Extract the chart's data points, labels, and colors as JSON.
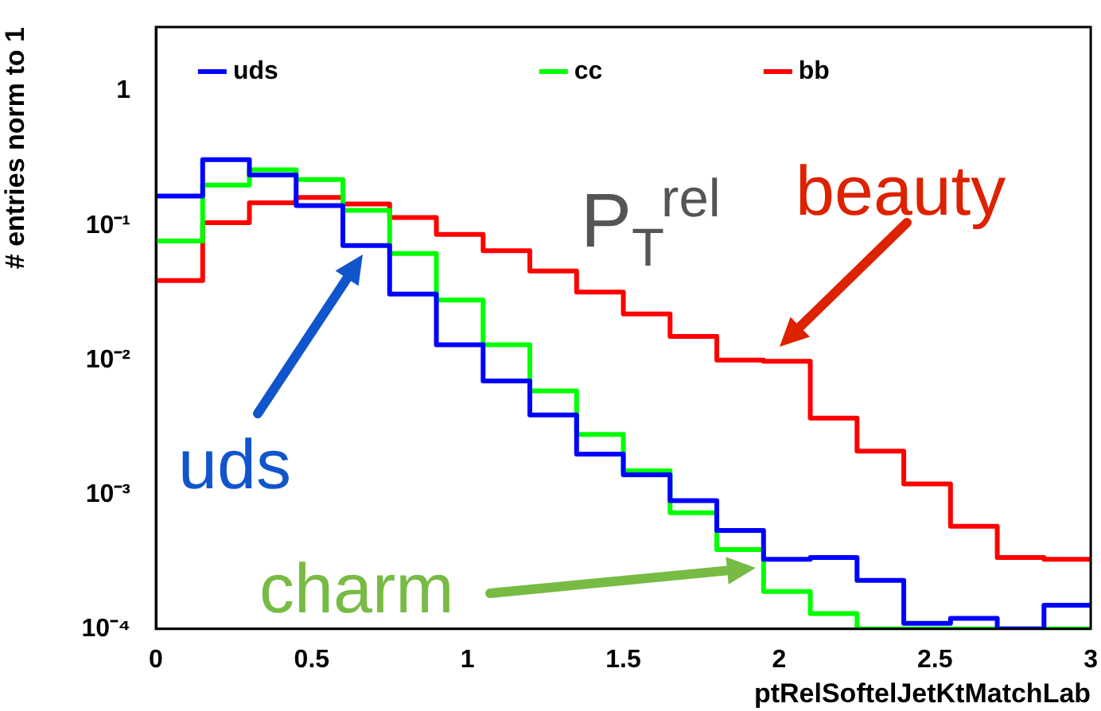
{
  "chart_data": {
    "type": "histogram",
    "xlabel": "ptRelSoftelJetKtMatchLab",
    "ylabel": "# entries norm to 1",
    "bins": [
      0,
      0.15,
      0.3,
      0.45,
      0.6,
      0.75,
      0.9,
      1.05,
      1.2,
      1.35,
      1.5,
      1.65,
      1.8,
      1.95,
      2.1,
      2.25,
      2.4,
      2.55,
      2.7,
      2.85,
      3
    ],
    "series": [
      {
        "name": "uds",
        "color": "#0000ff",
        "values": [
          0.166,
          0.31,
          0.238,
          0.141,
          0.071,
          0.031,
          0.013,
          0.007,
          0.0039,
          0.002,
          0.0014,
          0.0009,
          0.00054,
          0.00033,
          0.00034,
          0.00023,
          0.00011,
          0.00012,
          0.0001,
          0.00015
        ]
      },
      {
        "name": "cc",
        "color": "#00ff00",
        "values": [
          0.077,
          0.2,
          0.26,
          0.22,
          0.13,
          0.062,
          0.028,
          0.013,
          0.0059,
          0.0028,
          0.0015,
          0.00073,
          0.00039,
          0.00019,
          0.00013,
          0.0001,
          0.0001,
          0.0001,
          0.0001,
          0.0001
        ]
      },
      {
        "name": "bb",
        "color": "#ff0000",
        "values": [
          0.039,
          0.105,
          0.148,
          0.162,
          0.145,
          0.115,
          0.086,
          0.065,
          0.046,
          0.032,
          0.022,
          0.015,
          0.01,
          0.0098,
          0.0037,
          0.0021,
          0.0012,
          0.00058,
          0.00034,
          0.00033
        ]
      }
    ],
    "xlim": [
      0,
      3
    ],
    "xticks": [
      0,
      0.5,
      1,
      1.5,
      2,
      2.5,
      3
    ],
    "ylim": [
      0.0001,
      3
    ],
    "log": "y",
    "yticks": [
      {
        "value": 0.0001,
        "label": "10⁻⁴"
      },
      {
        "value": 0.001,
        "label": "10⁻³"
      },
      {
        "value": 0.01,
        "label": "10⁻²"
      },
      {
        "value": 0.1,
        "label": "10⁻¹"
      },
      1
    ],
    "grid": false,
    "legend": "top",
    "annotations": [
      "P$_{T}$$^{rel}$",
      "uds",
      "beauty",
      "charm"
    ]
  }
}
